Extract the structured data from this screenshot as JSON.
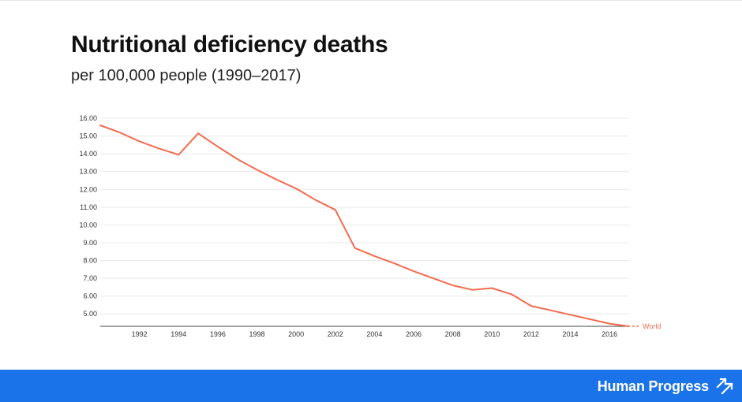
{
  "header": {
    "title": "Nutritional deficiency deaths",
    "subtitle": "per 100,000 people (1990–2017)"
  },
  "footer": {
    "brand": "Human Progress",
    "brand_icon": "diagonal-arrows-icon",
    "color": "#1a73e8"
  },
  "chart_data": {
    "type": "line",
    "title": "Nutritional deficiency deaths",
    "subtitle": "per 100,000 people (1990–2017)",
    "xlabel": "",
    "ylabel": "",
    "x": [
      1990,
      1991,
      1992,
      1993,
      1994,
      1995,
      1996,
      1997,
      1998,
      1999,
      2000,
      2001,
      2002,
      2003,
      2004,
      2005,
      2006,
      2007,
      2008,
      2009,
      2010,
      2011,
      2012,
      2013,
      2014,
      2015,
      2016,
      2017
    ],
    "series": [
      {
        "name": "World",
        "color": "#f26b4f",
        "values": [
          15.6,
          15.2,
          14.7,
          14.3,
          13.95,
          15.15,
          14.4,
          13.7,
          13.1,
          12.55,
          12.05,
          11.4,
          10.85,
          8.7,
          8.25,
          7.85,
          7.4,
          7.0,
          6.6,
          6.35,
          6.45,
          6.1,
          5.45,
          5.2,
          4.95,
          4.7,
          4.45,
          4.3
        ]
      }
    ],
    "ylim": [
      4.3,
      16.0
    ],
    "y_ticks": [
      "5.00",
      "6.00",
      "7.00",
      "8.00",
      "9.00",
      "10.00",
      "11.00",
      "12.00",
      "13.00",
      "14.00",
      "15.00",
      "16.00"
    ],
    "x_ticks": [
      "1992",
      "1994",
      "1996",
      "1998",
      "2000",
      "2002",
      "2004",
      "2006",
      "2008",
      "2010",
      "2012",
      "2014",
      "2016"
    ],
    "grid": true,
    "legend": "end-of-line label"
  }
}
